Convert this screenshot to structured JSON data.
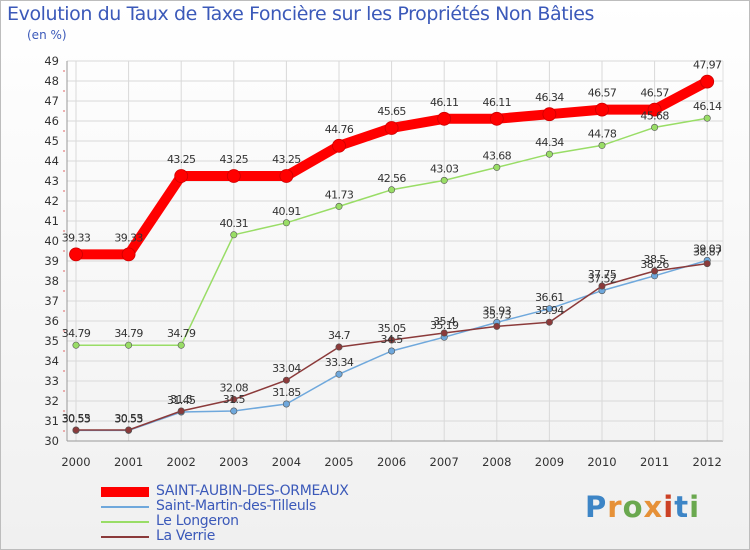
{
  "title": "Evolution du Taux de Taxe Foncière sur les Propriétés Non Bâties",
  "unit": "(en %)",
  "logo": "Proxiti",
  "chart_data": {
    "type": "line",
    "x": [
      "2000",
      "2001",
      "2002",
      "2003",
      "2004",
      "2005",
      "2006",
      "2007",
      "2008",
      "2009",
      "2010",
      "2011",
      "2012"
    ],
    "ylim": [
      30,
      49
    ],
    "yticks": [
      "30",
      "31",
      "32",
      "33",
      "34",
      "35",
      "36",
      "37",
      "38",
      "39",
      "40",
      "41",
      "42",
      "43",
      "44",
      "45",
      "46",
      "47",
      "48",
      "49"
    ],
    "series": [
      {
        "name": "SAINT-AUBIN-DES-ORMEAUX",
        "color": "#ff0000",
        "values": [
          39.33,
          39.33,
          43.25,
          43.25,
          43.25,
          44.76,
          45.65,
          46.11,
          46.11,
          46.34,
          46.57,
          46.57,
          47.97
        ],
        "labels": [
          "39.33",
          "39.33",
          "43.25",
          "43.25",
          "43.25",
          "44.76",
          "45.65",
          "46.11",
          "46.11",
          "46.34",
          "46.57",
          "46.57",
          "47.97"
        ]
      },
      {
        "name": "Saint-Martin-des-Tilleuls",
        "color": "#6fa8dc",
        "values": [
          30.53,
          30.53,
          31.45,
          31.5,
          31.85,
          33.34,
          34.5,
          35.19,
          35.93,
          36.61,
          37.52,
          38.26,
          39.03
        ],
        "labels": [
          "30.53",
          "30.53",
          "31.45",
          "31.5",
          "31.85",
          "33.34",
          "34.5",
          "35.19",
          "35.93",
          "36.61",
          "37.52",
          "38.26",
          "39.03"
        ]
      },
      {
        "name": "Le Longeron",
        "color": "#99dd66",
        "values": [
          34.79,
          34.79,
          34.79,
          40.31,
          40.91,
          41.73,
          42.56,
          43.03,
          43.68,
          44.34,
          44.78,
          45.68,
          46.14
        ],
        "labels": [
          "34.79",
          "34.79",
          "34.79",
          "40.31",
          "40.91",
          "41.73",
          "42.56",
          "43.03",
          "43.68",
          "44.34",
          "44.78",
          "45.68",
          "46.14"
        ]
      },
      {
        "name": "La Verrie",
        "color": "#8b3a3a",
        "values": [
          30.55,
          30.55,
          31.5,
          32.08,
          33.04,
          34.7,
          35.05,
          35.4,
          35.73,
          35.94,
          37.75,
          38.5,
          38.87
        ],
        "labels": [
          "30.55",
          "30.55",
          "31.5",
          "32.08",
          "33.04",
          "34.7",
          "35.05",
          "35.4",
          "35.73",
          "35.94",
          "37.75",
          "38.5",
          "38.87"
        ]
      }
    ]
  }
}
